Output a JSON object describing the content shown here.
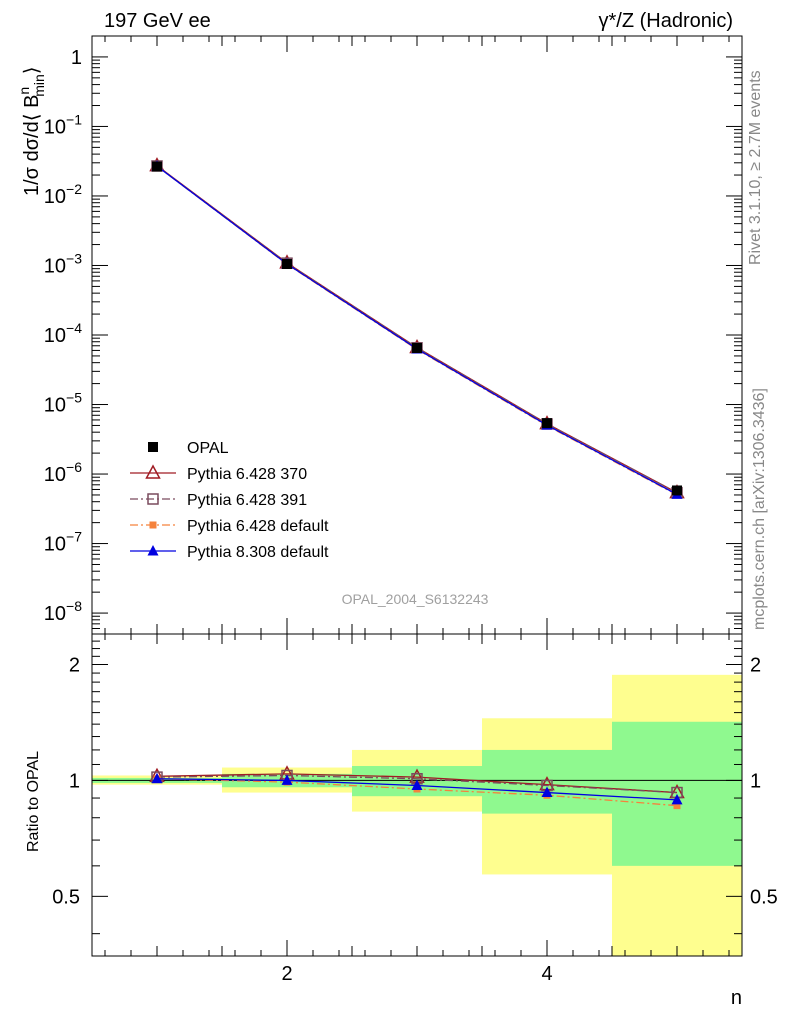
{
  "header": {
    "left": "197 GeV ee",
    "right_pre": "γ",
    "right_post": "*/Z (Hadronic)"
  },
  "side_text": {
    "rivet": "Rivet 3.1.10, ≥ 2.7M events",
    "mcplots": "mcplots.cern.ch [arXiv:1306.3436]"
  },
  "watermark": "OPAL_2004_S6132243",
  "axes": {
    "xlabel": "n",
    "ylabel_main": "1/σ dσ/d⟨ B",
    "ylabel_sup": "n",
    "ylabel_sub": "min",
    "ylabel_close": "⟩",
    "ylabel_ratio": "Ratio to OPAL"
  },
  "chart_data": [
    {
      "type": "line",
      "scale": "log",
      "xlim": [
        0.5,
        5.5
      ],
      "ylim": [
        5e-09,
        2
      ],
      "x_ticks": [
        2,
        4
      ],
      "y_ticks": [
        {
          "base": "1",
          "exp": ""
        },
        {
          "base": "10",
          "exp": "−1"
        },
        {
          "base": "10",
          "exp": "−2"
        },
        {
          "base": "10",
          "exp": "−3"
        },
        {
          "base": "10",
          "exp": "−4"
        },
        {
          "base": "10",
          "exp": "−5"
        },
        {
          "base": "10",
          "exp": "−6"
        },
        {
          "base": "10",
          "exp": "−7"
        },
        {
          "base": "10",
          "exp": "−8"
        }
      ],
      "x": [
        1,
        2,
        3,
        4,
        5
      ],
      "series": [
        {
          "name": "OPAL",
          "marker": "square-filled",
          "color": "#000000",
          "values": [
            0.0265,
            0.00105,
            6.5e-05,
            5.4e-06,
            5.8e-07
          ]
        },
        {
          "name": "Pythia 6.428 370",
          "marker": "triangle-open",
          "color": "#a01c24",
          "line": "solid",
          "values": [
            0.0273,
            0.00109,
            6.6e-05,
            5.3e-06,
            5.4e-07
          ]
        },
        {
          "name": "Pythia 6.428 391",
          "marker": "square-open",
          "color": "#7a4b5e",
          "line": "dashdot",
          "values": [
            0.027,
            0.00108,
            6.55e-05,
            5.25e-06,
            5.4e-07
          ]
        },
        {
          "name": "Pythia 6.428 default",
          "marker": "square-filled-small",
          "color": "#f5823c",
          "line": "dashdot",
          "values": [
            0.0268,
            0.00104,
            6.2e-05,
            4.95e-06,
            5e-07
          ]
        },
        {
          "name": "Pythia 8.308 default",
          "marker": "triangle-filled",
          "color": "#0000e0",
          "line": "solid",
          "values": [
            0.0268,
            0.00105,
            6.3e-05,
            5.05e-06,
            5.1e-07
          ]
        }
      ]
    },
    {
      "type": "line",
      "scale": "log",
      "xlim": [
        0.5,
        5.5
      ],
      "ylim": [
        0.35,
        2.4
      ],
      "y_ticks": [
        "0.5",
        "1",
        "2"
      ],
      "x": [
        1,
        2,
        3,
        4,
        5
      ],
      "bands": [
        {
          "x": [
            0.5,
            1.5
          ],
          "green": [
            0.985,
            1.015
          ],
          "yellow": [
            0.975,
            1.03
          ]
        },
        {
          "x": [
            1.5,
            2.5
          ],
          "green": [
            0.96,
            1.04
          ],
          "yellow": [
            0.93,
            1.08
          ]
        },
        {
          "x": [
            2.5,
            3.5
          ],
          "green": [
            0.91,
            1.09
          ],
          "yellow": [
            0.83,
            1.2
          ]
        },
        {
          "x": [
            3.5,
            4.5
          ],
          "green": [
            0.82,
            1.2
          ],
          "yellow": [
            0.57,
            1.45
          ]
        },
        {
          "x": [
            4.5,
            5.5
          ],
          "green": [
            0.6,
            1.42
          ],
          "yellow": [
            0.35,
            1.88
          ]
        }
      ],
      "series": [
        {
          "name": "Pythia 6.428 370",
          "values": [
            1.025,
            1.04,
            1.02,
            0.975,
            0.93
          ]
        },
        {
          "name": "Pythia 6.428 391",
          "values": [
            1.02,
            1.03,
            1.01,
            0.97,
            0.93
          ]
        },
        {
          "name": "Pythia 6.428 default",
          "values": [
            1.01,
            0.99,
            0.95,
            0.915,
            0.86
          ]
        },
        {
          "name": "Pythia 8.308 default",
          "values": [
            1.01,
            1.0,
            0.97,
            0.93,
            0.89
          ]
        }
      ],
      "colors": {
        "green": "#8ff98f",
        "yellow": "#fefe8f"
      }
    }
  ]
}
